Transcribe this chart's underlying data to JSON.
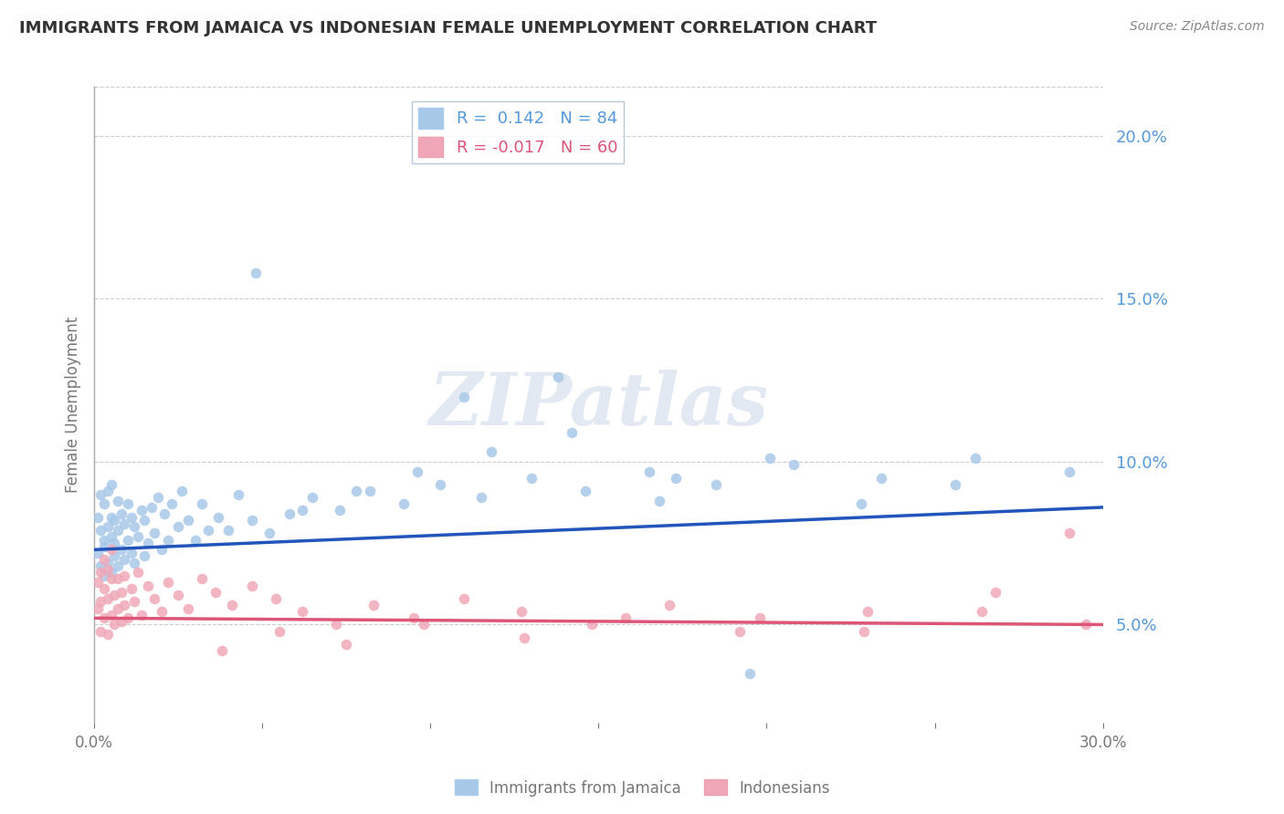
{
  "title": "IMMIGRANTS FROM JAMAICA VS INDONESIAN FEMALE UNEMPLOYMENT CORRELATION CHART",
  "source_text": "Source: ZipAtlas.com",
  "ylabel": "Female Unemployment",
  "xlim": [
    0.0,
    0.3
  ],
  "ylim": [
    0.02,
    0.215
  ],
  "xticks": [
    0.0,
    0.05,
    0.1,
    0.15,
    0.2,
    0.25,
    0.3
  ],
  "xtick_labels": [
    "0.0%",
    "",
    "",
    "",
    "",
    "",
    "30.0%"
  ],
  "yticks_right": [
    0.05,
    0.1,
    0.15,
    0.2
  ],
  "ytick_labels_right": [
    "5.0%",
    "10.0%",
    "15.0%",
    "20.0%"
  ],
  "series1_label": "Immigrants from Jamaica",
  "series2_label": "Indonesians",
  "series1_color": "#a8c8e8",
  "series2_color": "#f0a8b8",
  "series1_line_color": "#2255bb",
  "series2_line_color": "#dd5577",
  "R1": 0.142,
  "N1": 84,
  "R2": -0.017,
  "N2": 60,
  "watermark": "ZIPatlas",
  "background_color": "#ffffff",
  "title_color": "#333333",
  "axis_color": "#aaaaaa",
  "grid_color": "#cccccc",
  "series1_x": [
    0.001,
    0.001,
    0.002,
    0.002,
    0.002,
    0.003,
    0.003,
    0.003,
    0.003,
    0.004,
    0.004,
    0.004,
    0.005,
    0.005,
    0.005,
    0.005,
    0.006,
    0.006,
    0.006,
    0.007,
    0.007,
    0.007,
    0.008,
    0.008,
    0.009,
    0.009,
    0.01,
    0.01,
    0.011,
    0.011,
    0.012,
    0.012,
    0.013,
    0.014,
    0.015,
    0.015,
    0.016,
    0.017,
    0.018,
    0.019,
    0.02,
    0.021,
    0.022,
    0.023,
    0.025,
    0.026,
    0.028,
    0.03,
    0.032,
    0.034,
    0.037,
    0.04,
    0.043,
    0.047,
    0.052,
    0.058,
    0.065,
    0.073,
    0.082,
    0.092,
    0.103,
    0.115,
    0.13,
    0.146,
    0.165,
    0.185,
    0.208,
    0.234,
    0.262,
    0.29,
    0.048,
    0.062,
    0.078,
    0.096,
    0.118,
    0.142,
    0.173,
    0.201,
    0.228,
    0.256,
    0.11,
    0.138,
    0.168,
    0.195
  ],
  "series1_y": [
    0.072,
    0.083,
    0.068,
    0.079,
    0.09,
    0.065,
    0.076,
    0.087,
    0.074,
    0.069,
    0.08,
    0.091,
    0.066,
    0.077,
    0.083,
    0.093,
    0.071,
    0.082,
    0.075,
    0.068,
    0.079,
    0.088,
    0.073,
    0.084,
    0.07,
    0.081,
    0.076,
    0.087,
    0.072,
    0.083,
    0.069,
    0.08,
    0.077,
    0.085,
    0.071,
    0.082,
    0.075,
    0.086,
    0.078,
    0.089,
    0.073,
    0.084,
    0.076,
    0.087,
    0.08,
    0.091,
    0.082,
    0.076,
    0.087,
    0.079,
    0.083,
    0.079,
    0.09,
    0.082,
    0.078,
    0.084,
    0.089,
    0.085,
    0.091,
    0.087,
    0.093,
    0.089,
    0.095,
    0.091,
    0.097,
    0.093,
    0.099,
    0.095,
    0.101,
    0.097,
    0.158,
    0.085,
    0.091,
    0.097,
    0.103,
    0.109,
    0.095,
    0.101,
    0.087,
    0.093,
    0.12,
    0.126,
    0.088,
    0.035
  ],
  "series2_x": [
    0.001,
    0.001,
    0.002,
    0.002,
    0.002,
    0.003,
    0.003,
    0.003,
    0.004,
    0.004,
    0.004,
    0.005,
    0.005,
    0.005,
    0.006,
    0.006,
    0.007,
    0.007,
    0.008,
    0.008,
    0.009,
    0.009,
    0.01,
    0.011,
    0.012,
    0.013,
    0.014,
    0.016,
    0.018,
    0.02,
    0.022,
    0.025,
    0.028,
    0.032,
    0.036,
    0.041,
    0.047,
    0.054,
    0.062,
    0.072,
    0.083,
    0.095,
    0.11,
    0.127,
    0.148,
    0.171,
    0.198,
    0.229,
    0.264,
    0.295,
    0.038,
    0.055,
    0.075,
    0.098,
    0.128,
    0.158,
    0.192,
    0.23,
    0.268,
    0.29
  ],
  "series2_y": [
    0.063,
    0.055,
    0.048,
    0.057,
    0.066,
    0.052,
    0.061,
    0.07,
    0.047,
    0.058,
    0.067,
    0.053,
    0.064,
    0.073,
    0.05,
    0.059,
    0.055,
    0.064,
    0.051,
    0.06,
    0.056,
    0.065,
    0.052,
    0.061,
    0.057,
    0.066,
    0.053,
    0.062,
    0.058,
    0.054,
    0.063,
    0.059,
    0.055,
    0.064,
    0.06,
    0.056,
    0.062,
    0.058,
    0.054,
    0.05,
    0.056,
    0.052,
    0.058,
    0.054,
    0.05,
    0.056,
    0.052,
    0.048,
    0.054,
    0.05,
    0.042,
    0.048,
    0.044,
    0.05,
    0.046,
    0.052,
    0.048,
    0.054,
    0.06,
    0.078
  ],
  "trend1_x0": 0.0,
  "trend1_y0": 0.073,
  "trend1_x1": 0.3,
  "trend1_y1": 0.086,
  "trend2_x0": 0.0,
  "trend2_y0": 0.052,
  "trend2_x1": 0.3,
  "trend2_y1": 0.05
}
